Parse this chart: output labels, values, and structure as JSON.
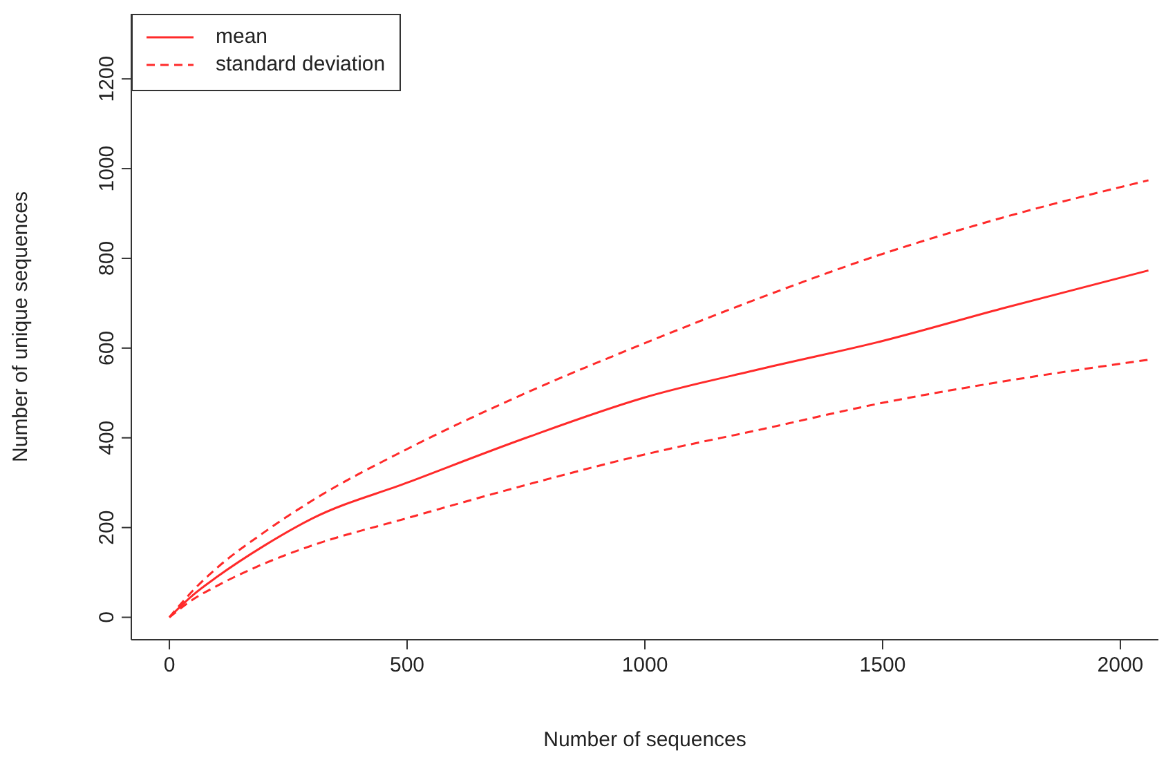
{
  "chart_data": {
    "type": "line",
    "xlabel": "Number of sequences",
    "ylabel": "Number of unique sequences",
    "x": [
      0,
      50,
      100,
      200,
      300,
      500,
      750,
      1000,
      1250,
      1500,
      1750,
      2059
    ],
    "xlim": [
      -80,
      2080
    ],
    "ylim": [
      -50,
      1345
    ],
    "xticks": [
      0,
      500,
      1000,
      1500,
      2000
    ],
    "yticks": [
      0,
      200,
      400,
      600,
      800,
      1000,
      1200
    ],
    "grid": false,
    "legend": "top left",
    "marker": "none",
    "series": [
      {
        "name": "mean",
        "color": "#ff2a2a",
        "line_style": "solid",
        "values": [
          0,
          50,
          90,
          160,
          220,
          300,
          400,
          490,
          555,
          616,
          688,
          773
        ]
      },
      {
        "name": "standard deviation",
        "color": "#ff2a2a",
        "line_style": "dashed",
        "values": [
          0,
          60,
          110,
          190,
          260,
          375,
          500,
          611,
          715,
          810,
          890,
          974
        ]
      },
      {
        "color": "#ff2a2a",
        "line_style": "dashed",
        "values": [
          0,
          40,
          70,
          120,
          160,
          221,
          295,
          363,
          420,
          478,
          525,
          574
        ]
      }
    ]
  }
}
